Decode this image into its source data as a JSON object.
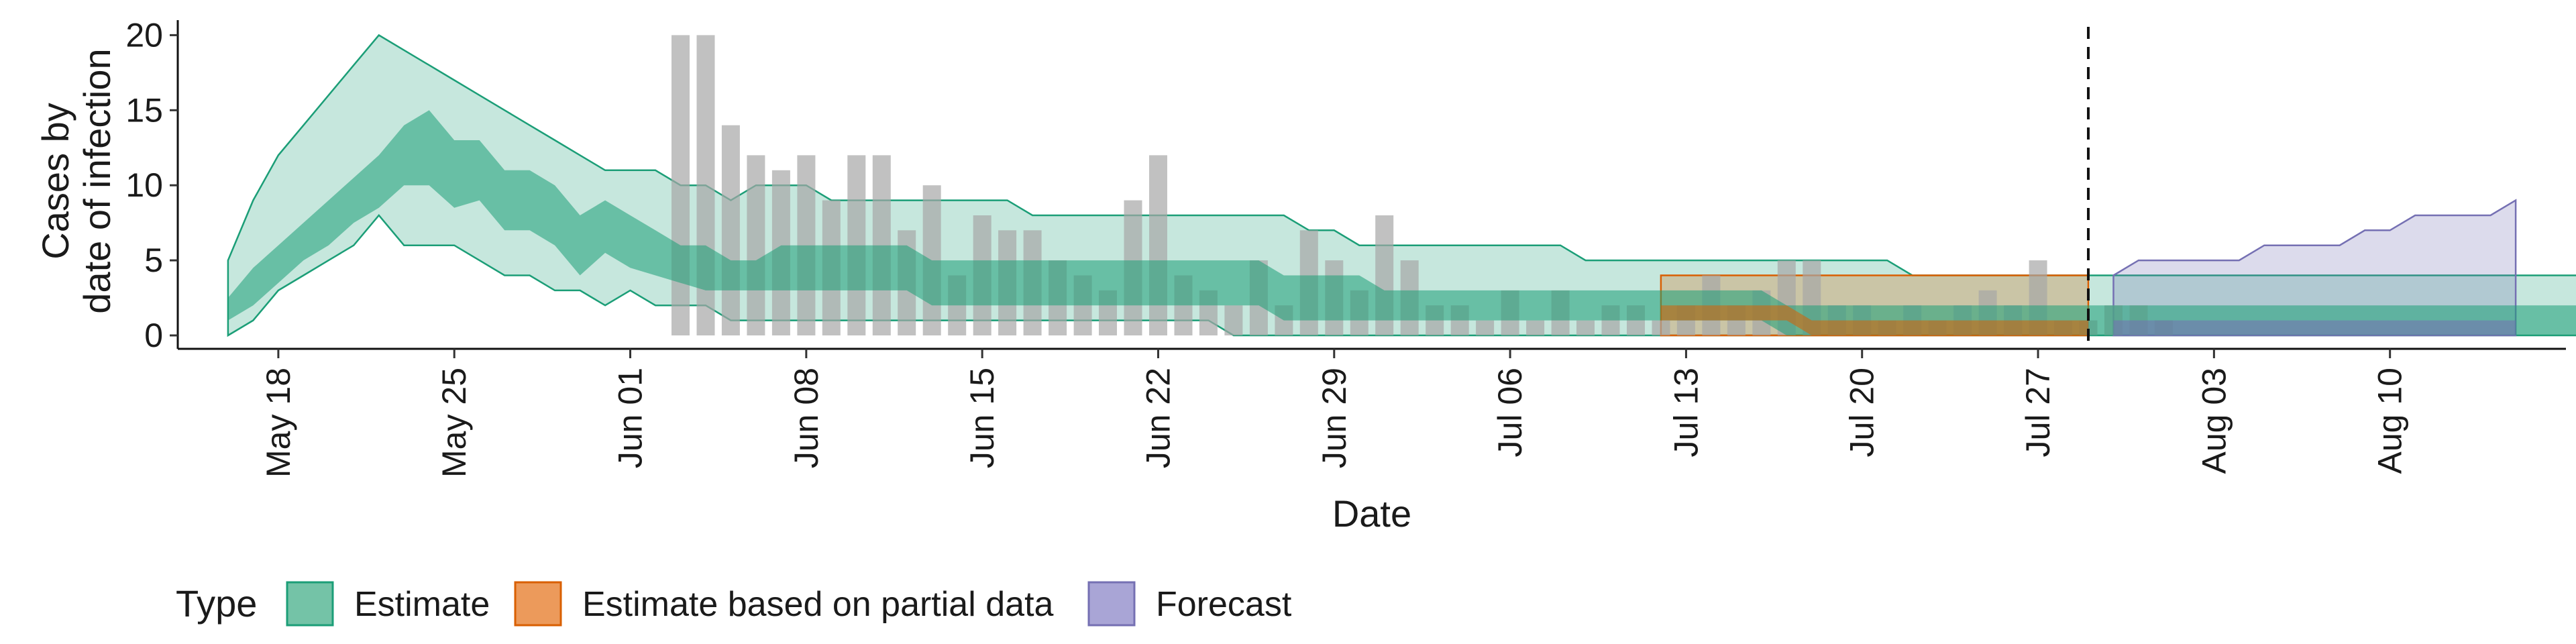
{
  "chart_data": {
    "type": "area",
    "xlabel": "Date",
    "ylabel": [
      "Cases by",
      "date of infection"
    ],
    "ylim": [
      0,
      21
    ],
    "y_ticks": [
      0,
      5,
      10,
      15,
      20
    ],
    "x_start": "2020-05-14",
    "x_end": "2020-08-17",
    "x_ticks": [
      {
        "date": "2020-05-18",
        "label": "May 18"
      },
      {
        "date": "2020-05-25",
        "label": "May 25"
      },
      {
        "date": "2020-06-01",
        "label": "Jun 01"
      },
      {
        "date": "2020-06-08",
        "label": "Jun 08"
      },
      {
        "date": "2020-06-15",
        "label": "Jun 15"
      },
      {
        "date": "2020-06-22",
        "label": "Jun 22"
      },
      {
        "date": "2020-06-29",
        "label": "Jun 29"
      },
      {
        "date": "2020-07-06",
        "label": "Jul 06"
      },
      {
        "date": "2020-07-13",
        "label": "Jul 13"
      },
      {
        "date": "2020-07-20",
        "label": "Jul 20"
      },
      {
        "date": "2020-07-27",
        "label": "Jul 27"
      },
      {
        "date": "2020-08-03",
        "label": "Aug 03"
      },
      {
        "date": "2020-08-10",
        "label": "Aug 10"
      }
    ],
    "forecast_line_date": "2020-07-29",
    "observed_cases": {
      "start_date": "2020-06-03",
      "values": [
        20,
        20,
        14,
        12,
        11,
        12,
        9,
        12,
        12,
        7,
        10,
        4,
        8,
        7,
        7,
        5,
        4,
        3,
        9,
        12,
        4,
        3,
        2,
        5,
        2,
        7,
        5,
        3,
        8,
        5,
        2,
        2,
        1,
        3,
        1,
        3,
        1,
        2,
        2,
        1,
        2,
        4,
        2,
        3,
        5,
        5,
        2,
        2,
        1,
        2,
        1,
        2,
        3,
        2,
        5,
        1,
        1,
        2,
        2,
        1
      ]
    },
    "series": [
      {
        "name": "Estimate",
        "color": "#1b9e77",
        "start_date": "2020-05-16",
        "upper90": [
          5,
          9,
          12,
          14,
          16,
          18,
          20,
          19,
          18,
          17,
          16,
          15,
          14,
          13,
          12,
          11,
          11,
          11,
          10,
          10,
          9,
          10,
          10,
          10,
          9,
          9,
          9,
          9,
          9,
          9,
          9,
          9,
          8,
          8,
          8,
          8,
          8,
          8,
          8,
          8,
          8,
          8,
          8,
          7,
          7,
          6,
          6,
          6,
          6,
          6,
          6,
          6,
          6,
          6,
          5,
          5,
          5,
          5,
          5,
          5,
          5,
          5,
          5,
          5,
          5,
          5,
          5,
          4,
          4,
          4,
          4,
          4,
          4,
          4,
          4,
          4,
          4,
          4,
          4,
          4,
          4,
          4,
          4,
          4,
          4,
          4,
          4,
          4,
          4,
          4,
          4,
          4,
          4,
          4,
          4,
          4
        ],
        "upper50": [
          2.5,
          4.5,
          6,
          7.5,
          9,
          10.5,
          12,
          14,
          15,
          13,
          13,
          11,
          11,
          10,
          8,
          9,
          8,
          7,
          6,
          6,
          5,
          5,
          6,
          6,
          6,
          6,
          6,
          6,
          5,
          5,
          5,
          5,
          5,
          5,
          5,
          5,
          5,
          5,
          5,
          5,
          5,
          5,
          4,
          4,
          4,
          4,
          3,
          3,
          3,
          3,
          3,
          3,
          3,
          3,
          3,
          3,
          3,
          3,
          3,
          3,
          3,
          3,
          2,
          2,
          2,
          2,
          2,
          2,
          2,
          2,
          2,
          2,
          2,
          2,
          2,
          2,
          2,
          2,
          2,
          2,
          2,
          2,
          2,
          2,
          2,
          2,
          2,
          2,
          2,
          2,
          2,
          2,
          2,
          2,
          2,
          2
        ],
        "lower50": [
          1,
          2,
          3.5,
          5,
          6,
          7.5,
          8.5,
          10,
          10,
          8.5,
          9,
          7,
          7,
          6,
          4,
          5.5,
          4.5,
          4,
          3.5,
          3,
          3,
          3,
          3,
          3,
          3,
          3,
          3,
          3,
          2,
          2,
          2,
          2,
          2,
          2,
          2,
          2,
          2,
          2,
          2,
          2,
          2,
          2,
          1,
          1,
          1,
          1,
          1,
          1,
          1,
          1,
          1,
          1,
          1,
          1,
          1,
          1,
          1,
          1,
          1,
          1,
          1,
          1,
          0,
          0,
          0,
          0,
          0,
          0,
          0,
          0,
          0,
          0,
          0,
          0,
          0,
          0,
          0,
          0,
          0,
          0,
          0,
          0,
          0,
          0,
          0,
          0,
          0,
          0,
          0,
          0,
          0,
          0,
          0,
          0,
          0,
          0
        ],
        "lower90": [
          0,
          1,
          3,
          4,
          5,
          6,
          8,
          6,
          6,
          6,
          5,
          4,
          4,
          3,
          3,
          2,
          3,
          2,
          2,
          2,
          1,
          1,
          1,
          1,
          1,
          1,
          1,
          1,
          1,
          1,
          1,
          1,
          1,
          1,
          1,
          1,
          1,
          1,
          1,
          1,
          0,
          0,
          0,
          0,
          0,
          0,
          0,
          0,
          0,
          0,
          0,
          0,
          0,
          0,
          0,
          0,
          0,
          0,
          0,
          0,
          0,
          0,
          0,
          0,
          0,
          0,
          0,
          0,
          0,
          0,
          0,
          0,
          0,
          0,
          0,
          0,
          0,
          0,
          0,
          0,
          0,
          0,
          0,
          0,
          0,
          0,
          0,
          0,
          0,
          0,
          0,
          0,
          0,
          0,
          0,
          0
        ]
      },
      {
        "name": "Estimate based on partial data",
        "color": "#d95f02",
        "start_date": "2020-07-12",
        "upper90": [
          4,
          4,
          4,
          4,
          4,
          4,
          4,
          4,
          4,
          4,
          4,
          4,
          4,
          4,
          4,
          4,
          4,
          4
        ],
        "upper50": [
          2,
          2,
          2,
          2,
          2,
          2,
          1,
          1,
          1,
          1,
          1,
          1,
          1,
          1,
          1,
          1,
          1,
          1
        ],
        "lower50": [
          1,
          1,
          1,
          1,
          1,
          1,
          0,
          0,
          0,
          0,
          0,
          0,
          0,
          0,
          0,
          0,
          0,
          0
        ],
        "lower90": [
          0,
          0,
          0,
          0,
          0,
          0,
          0,
          0,
          0,
          0,
          0,
          0,
          0,
          0,
          0,
          0,
          0,
          0
        ]
      },
      {
        "name": "Forecast",
        "color": "#7570b3",
        "start_date": "2020-07-30",
        "upper90": [
          4,
          5,
          5,
          5,
          5,
          5,
          6,
          6,
          6,
          6,
          7,
          7,
          8,
          8,
          8,
          8,
          9
        ],
        "upper50": [
          1,
          1,
          1,
          1,
          1,
          1,
          1,
          1,
          1,
          1,
          1,
          1,
          1,
          1,
          1,
          1,
          1
        ],
        "lower50": [
          0,
          0,
          0,
          0,
          0,
          0,
          0,
          0,
          0,
          0,
          0,
          0,
          0,
          0,
          0,
          0,
          0
        ],
        "lower90": [
          0,
          0,
          0,
          0,
          0,
          0,
          0,
          0,
          0,
          0,
          0,
          0,
          0,
          0,
          0,
          0,
          0
        ]
      }
    ],
    "legend": {
      "title": "Type",
      "position": "bottom",
      "items": [
        {
          "label": "Estimate",
          "fill": "#74c3a7",
          "stroke": "#1b9e77"
        },
        {
          "label": "Estimate based on partial data",
          "fill": "#ec9a5b",
          "stroke": "#d95f02"
        },
        {
          "label": "Forecast",
          "fill": "#a9a5d6",
          "stroke": "#7570b3"
        }
      ]
    },
    "bar_color": "#a6a6a6",
    "grid": false
  }
}
